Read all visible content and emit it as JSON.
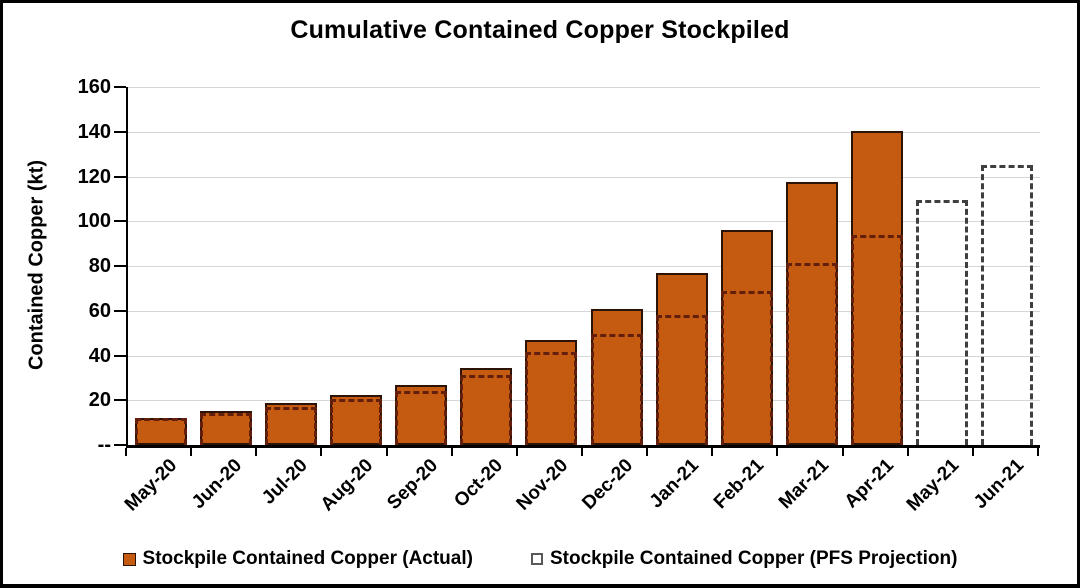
{
  "chart_data": {
    "type": "bar",
    "title": "Cumulative Contained Copper Stockpiled",
    "ylabel": "Contained Copper (kt)",
    "xlabel": "",
    "ylim": [
      0,
      160
    ],
    "ytick_step": 20,
    "ytick_labels": [
      "--",
      "20",
      "40",
      "60",
      "80",
      "100",
      "120",
      "140",
      "160"
    ],
    "grid": true,
    "legend_position": "bottom",
    "categories": [
      "May-20",
      "Jun-20",
      "Jul-20",
      "Aug-20",
      "Sep-20",
      "Oct-20",
      "Nov-20",
      "Dec-20",
      "Jan-21",
      "Feb-21",
      "Mar-21",
      "Apr-21",
      "May-21",
      "Jun-21"
    ],
    "series": [
      {
        "name": "Stockpile Contained Copper (Actual)",
        "style": "solid-bar",
        "values": [
          12,
          15,
          19,
          22.5,
          27,
          34.5,
          47,
          61,
          77,
          96,
          117.5,
          140.5,
          null,
          null
        ]
      },
      {
        "name": "Stockpile Contained Copper (PFS Projection)",
        "style": "dashed-outline-bar",
        "values": [
          12,
          14.5,
          17,
          20.5,
          24,
          31.5,
          41.5,
          49.5,
          58,
          69,
          81.5,
          94,
          109.5,
          125
        ]
      }
    ],
    "colors": {
      "actual_fill": "#C55A11",
      "actual_border": "#2B1407",
      "projection_dash_on_actual": "#641E0C",
      "projection_dash_standalone": "#3F3F3F",
      "gridline": "#D6D6D6",
      "axis": "#000000",
      "text": "#000000"
    }
  }
}
